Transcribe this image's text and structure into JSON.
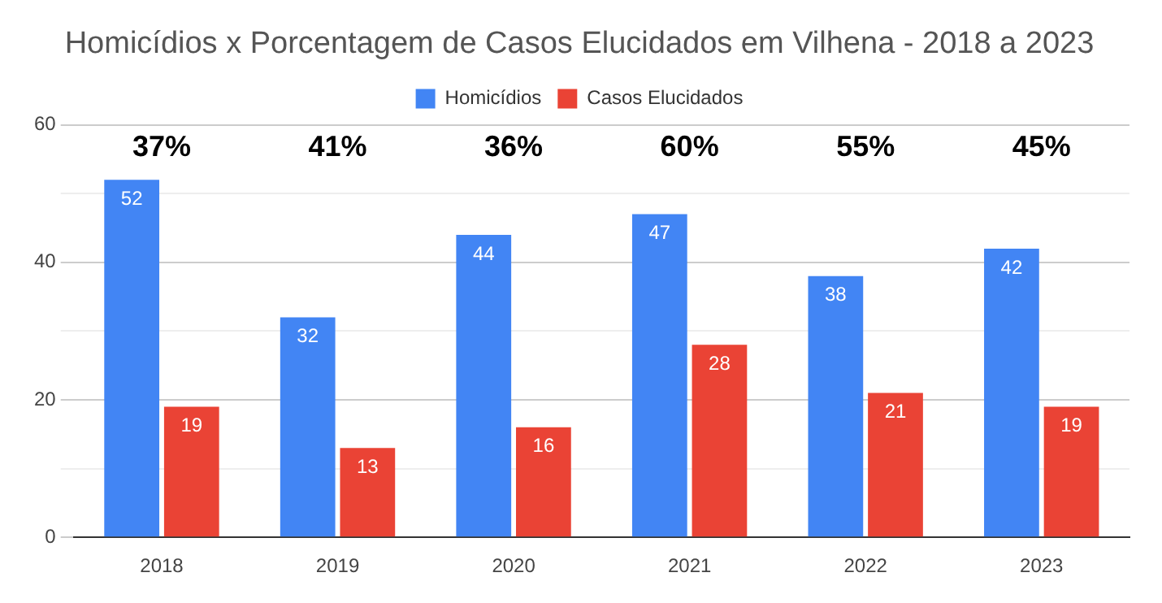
{
  "chart_data": {
    "type": "bar",
    "title": "Homicídios x Porcentagem de Casos Elucidados em Vilhena - 2018 a 2023",
    "categories": [
      "2018",
      "2019",
      "2020",
      "2021",
      "2022",
      "2023"
    ],
    "series": [
      {
        "name": "Homicídios",
        "color": "#4285f4",
        "values": [
          52,
          32,
          44,
          47,
          38,
          42
        ]
      },
      {
        "name": "Casos Elucidados",
        "color": "#ea4335",
        "values": [
          19,
          13,
          16,
          28,
          21,
          19
        ]
      }
    ],
    "ylim": [
      0,
      60
    ],
    "yticks": [
      0,
      {
        "value": 10,
        "label": null
      },
      20,
      {
        "value": 30,
        "label": null
      },
      40,
      {
        "value": 50,
        "label": null
      },
      60
    ],
    "grid": "y",
    "legend": "top",
    "data_labels": true,
    "annotations": [
      "37%",
      "41%",
      "36%",
      "60%",
      "55%",
      "45%"
    ]
  }
}
